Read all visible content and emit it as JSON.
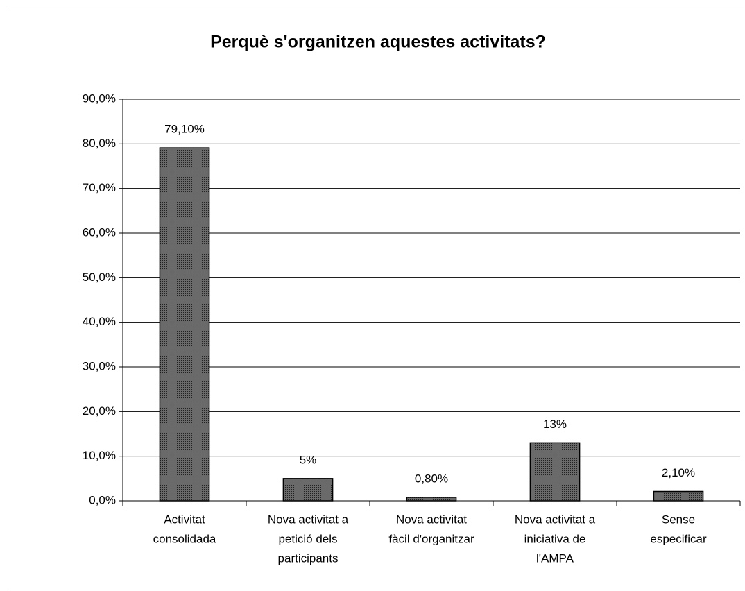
{
  "chart_data": {
    "type": "bar",
    "title": "Perquè s'organitzen aquestes activitats?",
    "categories": [
      [
        "Activitat",
        "consolidada"
      ],
      [
        "Nova activitat a",
        "petició dels",
        "participants"
      ],
      [
        "Nova activitat",
        "fàcil d'organitzar"
      ],
      [
        "Nova activitat a",
        "iniciativa de",
        "l'AMPA"
      ],
      [
        "Sense",
        "especificar"
      ]
    ],
    "values": [
      79.1,
      5,
      0.8,
      13,
      2.1
    ],
    "value_labels": [
      "79,10%",
      "5%",
      "0,80%",
      "13%",
      "2,10%"
    ],
    "color": "#5a5a5a",
    "ylim": [
      0,
      90
    ],
    "yticks": [
      {
        "value": 0,
        "label": "0,0%"
      },
      {
        "value": 10,
        "label": "10,0%"
      },
      {
        "value": 20,
        "label": "20,0%"
      },
      {
        "value": 30,
        "label": "30,0%"
      },
      {
        "value": 40,
        "label": "40,0%"
      },
      {
        "value": 50,
        "label": "50,0%"
      },
      {
        "value": 60,
        "label": "60,0%"
      },
      {
        "value": 70,
        "label": "70,0%"
      },
      {
        "value": 80,
        "label": "80,0%"
      },
      {
        "value": 90,
        "label": "90,0%"
      }
    ],
    "grid": true
  }
}
